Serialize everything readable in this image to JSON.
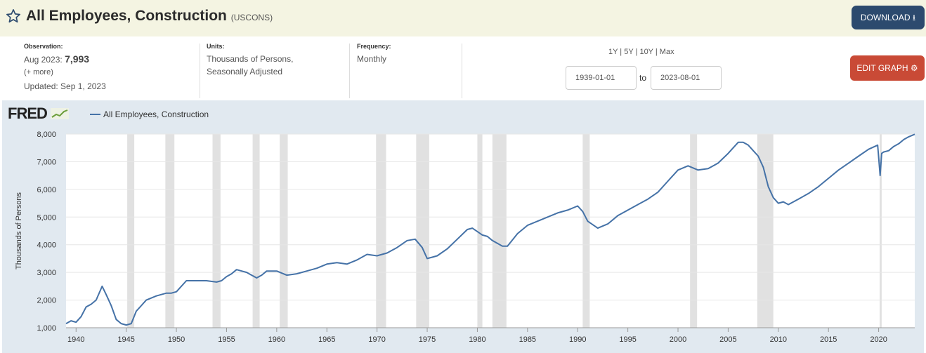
{
  "header": {
    "title": "All Employees, Construction",
    "series_id": "(USCONS)",
    "download_label": "DOWNLOAD"
  },
  "meta": {
    "observation_label": "Observation:",
    "observation_date": "Aug 2023:",
    "observation_value": "7,993",
    "more_label": "(+ more)",
    "updated": "Updated: Sep 1, 2023",
    "units_label": "Units:",
    "units_line1": "Thousands of Persons,",
    "units_line2": "Seasonally Adjusted",
    "frequency_label": "Frequency:",
    "frequency_value": "Monthly"
  },
  "range": {
    "links": "1Y | 5Y | 10Y | Max",
    "start": "1939-01-01",
    "to": "to",
    "end": "2023-08-01"
  },
  "edit_label": "EDIT GRAPH",
  "logo": "FRED",
  "colors": {
    "series": "#4572a7",
    "recession": "#e1e1e1",
    "download": "#2c4a6e",
    "edit": "#c94a36"
  },
  "chart_data": {
    "type": "line",
    "legend": "All Employees, Construction",
    "ylabel": "Thousands of Persons",
    "xlabel": "",
    "ylim": [
      1000,
      8000
    ],
    "xlim": [
      1939.0,
      2023.6
    ],
    "y_ticks": [
      "1,000",
      "2,000",
      "3,000",
      "4,000",
      "5,000",
      "6,000",
      "7,000",
      "8,000"
    ],
    "x_ticks": [
      "1940",
      "1945",
      "1950",
      "1955",
      "1960",
      "1965",
      "1970",
      "1975",
      "1980",
      "1985",
      "1990",
      "1995",
      "2000",
      "2005",
      "2010",
      "2015",
      "2020"
    ],
    "grid": true,
    "recessions": [
      [
        1945.1,
        1945.8
      ],
      [
        1948.9,
        1949.8
      ],
      [
        1953.6,
        1954.4
      ],
      [
        1957.6,
        1958.3
      ],
      [
        1960.3,
        1961.1
      ],
      [
        1969.9,
        1970.9
      ],
      [
        1973.9,
        1975.2
      ],
      [
        1980.0,
        1980.5
      ],
      [
        1981.5,
        1982.9
      ],
      [
        1990.5,
        1991.2
      ],
      [
        2001.2,
        2001.9
      ],
      [
        2007.9,
        2009.5
      ],
      [
        2020.1,
        2020.3
      ]
    ],
    "series": [
      {
        "name": "All Employees, Construction",
        "x": [
          1939.0,
          1939.5,
          1940.0,
          1940.5,
          1941.0,
          1941.5,
          1942.0,
          1942.6,
          1943.0,
          1943.5,
          1944.0,
          1944.5,
          1945.0,
          1945.5,
          1946.0,
          1946.5,
          1947.0,
          1948.0,
          1949.0,
          1949.5,
          1950.0,
          1951.0,
          1952.0,
          1953.0,
          1954.0,
          1954.5,
          1955.0,
          1955.5,
          1956.0,
          1956.5,
          1957.0,
          1957.5,
          1958.0,
          1958.5,
          1959.0,
          1960.0,
          1961.0,
          1962.0,
          1963.0,
          1964.0,
          1965.0,
          1966.0,
          1967.0,
          1968.0,
          1969.0,
          1970.0,
          1971.0,
          1972.0,
          1973.0,
          1973.8,
          1974.5,
          1975.0,
          1975.5,
          1976.0,
          1977.0,
          1978.0,
          1979.0,
          1979.5,
          1980.5,
          1981.0,
          1981.5,
          1982.5,
          1983.0,
          1984.0,
          1985.0,
          1986.0,
          1987.0,
          1988.0,
          1989.0,
          1990.0,
          1990.5,
          1991.0,
          1992.0,
          1993.0,
          1994.0,
          1995.0,
          1996.0,
          1997.0,
          1998.0,
          1999.0,
          2000.0,
          2001.0,
          2002.0,
          2003.0,
          2004.0,
          2005.0,
          2006.0,
          2006.5,
          2007.0,
          2007.5,
          2008.0,
          2008.5,
          2009.0,
          2009.5,
          2010.0,
          2010.5,
          2011.0,
          2012.0,
          2013.0,
          2014.0,
          2015.0,
          2016.0,
          2017.0,
          2018.0,
          2019.0,
          2019.9,
          2020.15,
          2020.3,
          2020.5,
          2021.0,
          2021.5,
          2022.0,
          2022.5,
          2023.0,
          2023.6
        ],
        "y": [
          1150,
          1250,
          1200,
          1400,
          1750,
          1850,
          2000,
          2500,
          2200,
          1800,
          1300,
          1150,
          1100,
          1150,
          1600,
          1800,
          2000,
          2150,
          2250,
          2250,
          2300,
          2700,
          2700,
          2700,
          2650,
          2700,
          2850,
          2950,
          3100,
          3050,
          3000,
          2900,
          2800,
          2900,
          3050,
          3050,
          2900,
          2950,
          3050,
          3150,
          3300,
          3350,
          3300,
          3450,
          3650,
          3600,
          3700,
          3900,
          4150,
          4200,
          3900,
          3500,
          3550,
          3600,
          3850,
          4200,
          4550,
          4600,
          4350,
          4300,
          4150,
          3950,
          3950,
          4400,
          4700,
          4850,
          5000,
          5150,
          5250,
          5400,
          5200,
          4850,
          4600,
          4750,
          5050,
          5250,
          5450,
          5650,
          5900,
          6300,
          6700,
          6850,
          6700,
          6750,
          6950,
          7300,
          7700,
          7700,
          7600,
          7400,
          7200,
          6800,
          6100,
          5700,
          5500,
          5550,
          5450,
          5650,
          5850,
          6100,
          6400,
          6700,
          6950,
          7200,
          7450,
          7600,
          6500,
          7300,
          7350,
          7400,
          7550,
          7650,
          7800,
          7900,
          7993
        ]
      }
    ]
  }
}
